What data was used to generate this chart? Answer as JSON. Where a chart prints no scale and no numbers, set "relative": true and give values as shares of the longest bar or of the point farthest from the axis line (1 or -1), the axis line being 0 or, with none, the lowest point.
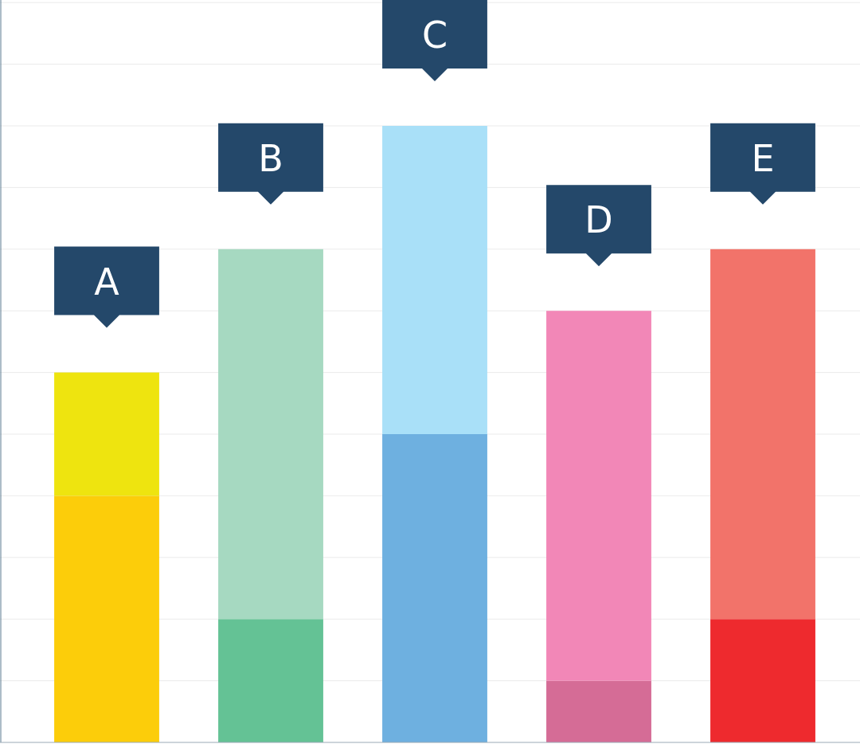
{
  "chart_data": {
    "type": "bar",
    "stacked": true,
    "relative": true,
    "grid": "y",
    "categories": [
      "A",
      "B",
      "C",
      "D",
      "E"
    ],
    "series": [
      {
        "colors": [
          "#fccd0a",
          "#64c295",
          "#6eb0e0",
          "#d56c96",
          "#ee2a2e"
        ],
        "values": [
          0.4,
          0.2,
          0.5,
          0.1,
          0.2
        ]
      },
      {
        "colors": [
          "#eee40f",
          "#a6d9c1",
          "#a9e0f8",
          "#f287b7",
          "#f2736a"
        ],
        "values": [
          0.2,
          0.6,
          0.5,
          0.6,
          0.6
        ]
      }
    ]
  }
}
